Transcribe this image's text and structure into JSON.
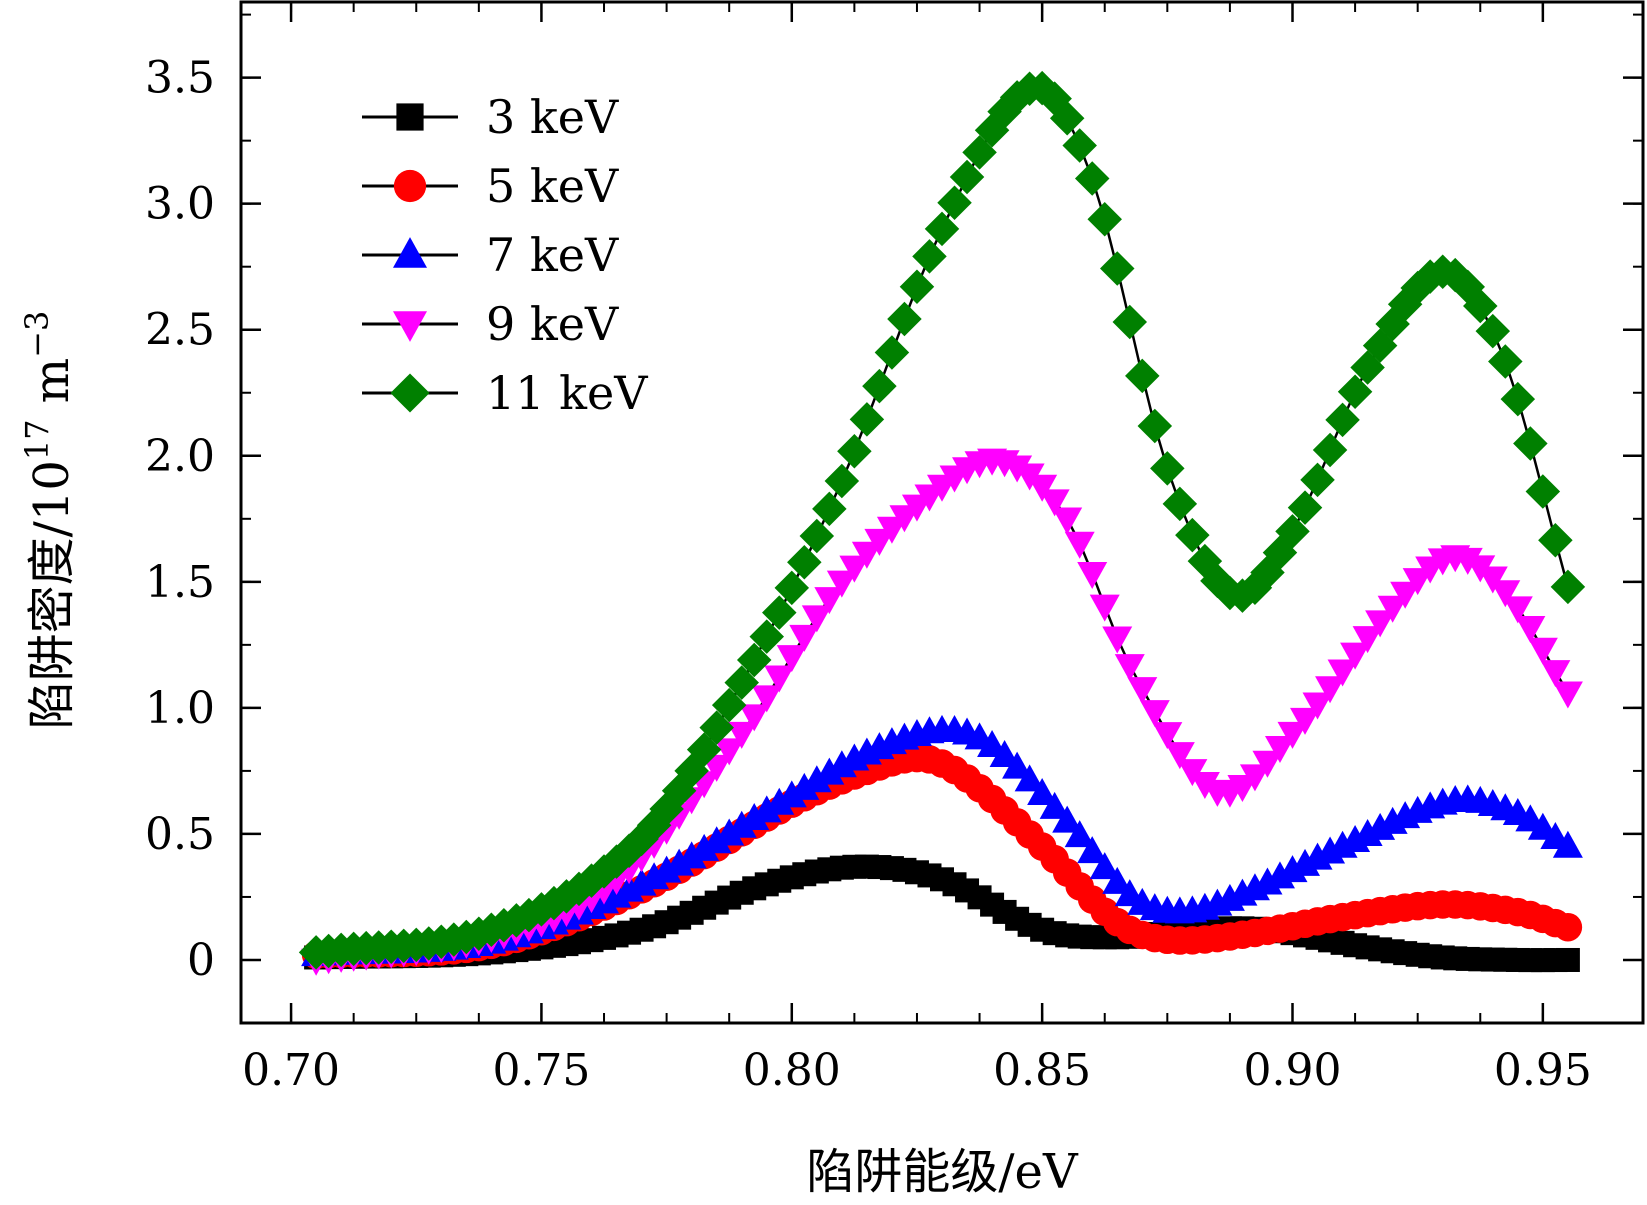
{
  "chart_data": {
    "type": "line",
    "title": "",
    "xlabel": "陷阱能级/eV",
    "ylabel_main": "陷阱密度/10",
    "ylabel_exponent": "17",
    "ylabel_unit": "m",
    "ylabel_unit_exponent": "−3",
    "xlim": [
      0.69,
      0.97
    ],
    "ylim": [
      -0.25,
      3.8
    ],
    "x_ticks": [
      0.7,
      0.75,
      0.8,
      0.85,
      0.9,
      0.95
    ],
    "x_tick_labels": [
      "0.70",
      "0.75",
      "0.80",
      "0.85",
      "0.90",
      "0.95"
    ],
    "y_ticks": [
      0,
      0.5,
      1.0,
      1.5,
      2.0,
      2.5,
      3.0,
      3.5
    ],
    "y_tick_labels": [
      "0",
      "0.5",
      "1.0",
      "1.5",
      "2.0",
      "2.5",
      "3.0",
      "3.5"
    ],
    "grid": false,
    "legend_position": "top-left",
    "marker_x_start": 0.705,
    "marker_x_step": 0.0025,
    "series": [
      {
        "name": "3 keV",
        "color": "#000000",
        "marker": "square",
        "knots": [
          [
            0.705,
            0.01
          ],
          [
            0.74,
            0.03
          ],
          [
            0.77,
            0.12
          ],
          [
            0.795,
            0.3
          ],
          [
            0.813,
            0.37
          ],
          [
            0.83,
            0.32
          ],
          [
            0.85,
            0.12
          ],
          [
            0.865,
            0.09
          ],
          [
            0.88,
            0.12
          ],
          [
            0.895,
            0.12
          ],
          [
            0.915,
            0.05
          ],
          [
            0.93,
            0.01
          ],
          [
            0.945,
            0.0
          ],
          [
            0.956,
            0.0
          ]
        ]
      },
      {
        "name": "5 keV",
        "color": "#ff0000",
        "marker": "circle",
        "knots": [
          [
            0.705,
            0.02
          ],
          [
            0.74,
            0.06
          ],
          [
            0.77,
            0.28
          ],
          [
            0.8,
            0.62
          ],
          [
            0.815,
            0.75
          ],
          [
            0.826,
            0.8
          ],
          [
            0.835,
            0.72
          ],
          [
            0.85,
            0.45
          ],
          [
            0.865,
            0.15
          ],
          [
            0.875,
            0.08
          ],
          [
            0.89,
            0.1
          ],
          [
            0.91,
            0.17
          ],
          [
            0.93,
            0.22
          ],
          [
            0.945,
            0.19
          ],
          [
            0.955,
            0.13
          ]
        ]
      },
      {
        "name": "7 keV",
        "color": "#0000ff",
        "marker": "triangle-up",
        "knots": [
          [
            0.705,
            0.02
          ],
          [
            0.74,
            0.07
          ],
          [
            0.77,
            0.3
          ],
          [
            0.8,
            0.65
          ],
          [
            0.815,
            0.82
          ],
          [
            0.83,
            0.91
          ],
          [
            0.84,
            0.85
          ],
          [
            0.855,
            0.55
          ],
          [
            0.868,
            0.25
          ],
          [
            0.878,
            0.19
          ],
          [
            0.89,
            0.26
          ],
          [
            0.91,
            0.45
          ],
          [
            0.932,
            0.63
          ],
          [
            0.945,
            0.58
          ],
          [
            0.955,
            0.45
          ]
        ]
      },
      {
        "name": "9 keV",
        "color": "#ff00ff",
        "marker": "triangle-down",
        "knots": [
          [
            0.705,
            0.0
          ],
          [
            0.74,
            0.09
          ],
          [
            0.765,
            0.32
          ],
          [
            0.79,
            0.9
          ],
          [
            0.81,
            1.5
          ],
          [
            0.83,
            1.88
          ],
          [
            0.842,
            1.98
          ],
          [
            0.855,
            1.75
          ],
          [
            0.868,
            1.15
          ],
          [
            0.885,
            0.67
          ],
          [
            0.9,
            0.9
          ],
          [
            0.92,
            1.4
          ],
          [
            0.932,
            1.6
          ],
          [
            0.943,
            1.45
          ],
          [
            0.955,
            1.06
          ]
        ]
      },
      {
        "name": "11 keV",
        "color": "#008000",
        "marker": "diamond",
        "knots": [
          [
            0.705,
            0.03
          ],
          [
            0.74,
            0.12
          ],
          [
            0.77,
            0.48
          ],
          [
            0.79,
            1.1
          ],
          [
            0.81,
            1.9
          ],
          [
            0.83,
            2.9
          ],
          [
            0.848,
            3.46
          ],
          [
            0.86,
            3.1
          ],
          [
            0.875,
            1.95
          ],
          [
            0.888,
            1.45
          ],
          [
            0.9,
            1.7
          ],
          [
            0.915,
            2.35
          ],
          [
            0.93,
            2.73
          ],
          [
            0.942,
            2.4
          ],
          [
            0.955,
            1.48
          ]
        ]
      }
    ]
  }
}
